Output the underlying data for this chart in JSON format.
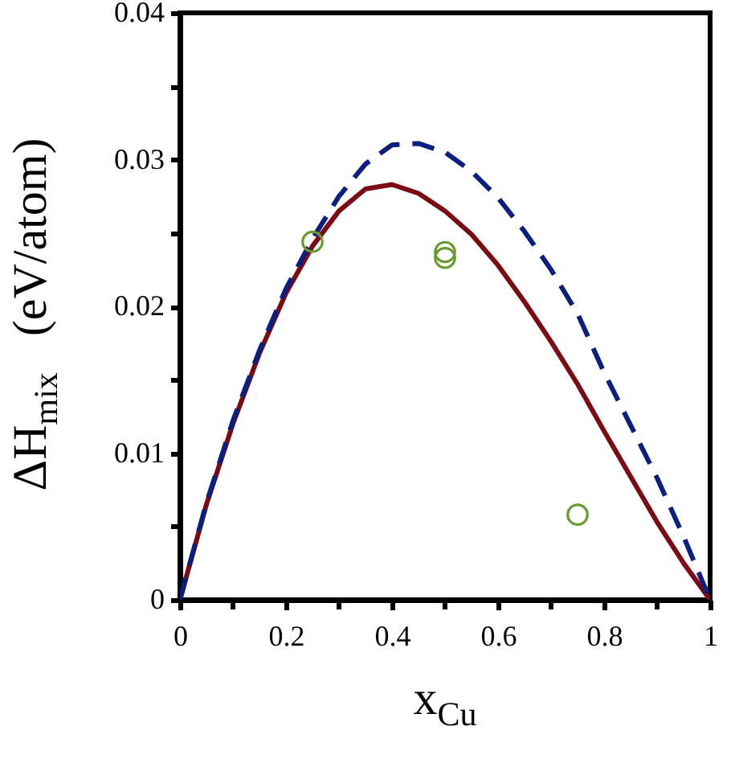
{
  "chart_data": {
    "type": "line",
    "xlabel": "x$_{Cu}$",
    "ylabel": "ΔH$_{mix}$   (eV/atom)",
    "xlim": [
      0,
      1
    ],
    "ylim": [
      0,
      0.04
    ],
    "xticks": [
      0,
      {
        "value": 0.1,
        "label": null
      },
      0.2,
      {
        "value": 0.3,
        "label": null
      },
      0.4,
      {
        "value": 0.5,
        "label": null
      },
      0.6,
      {
        "value": 0.7,
        "label": null
      },
      0.8,
      {
        "value": 0.9,
        "label": null
      },
      1
    ],
    "yticks": [
      0,
      {
        "value": 0.005,
        "label": null
      },
      0.01,
      {
        "value": 0.015,
        "label": null
      },
      0.02,
      {
        "value": 0.025,
        "label": null
      },
      0.03,
      {
        "value": 0.035,
        "label": null
      },
      0.04
    ],
    "x": [
      0,
      0.05,
      0.1,
      0.15,
      0.2,
      0.25,
      0.3,
      0.35,
      0.4,
      0.45,
      0.5,
      0.55,
      0.6,
      0.65,
      0.7,
      0.75,
      0.8,
      0.85,
      0.9,
      0.95,
      1
    ],
    "series": [
      {
        "type": "line",
        "line_style": "solid",
        "color": "#7b0a12",
        "values": [
          0,
          0.0065,
          0.012,
          0.0168,
          0.0209,
          0.0241,
          0.0265,
          0.028,
          0.0283,
          0.0277,
          0.0265,
          0.0249,
          0.0228,
          0.0203,
          0.0176,
          0.0147,
          0.0115,
          0.0084,
          0.0053,
          0.0025,
          0
        ]
      },
      {
        "type": "line",
        "line_style": "dashed",
        "color": "#0a1f7f",
        "values": [
          0,
          0.0066,
          0.0122,
          0.017,
          0.0212,
          0.0246,
          0.0275,
          0.0297,
          0.031,
          0.0311,
          0.0305,
          0.0292,
          0.0274,
          0.0251,
          0.0225,
          0.0195,
          0.0155,
          0.0119,
          0.0083,
          0.0043,
          0
        ]
      },
      {
        "type": "scatter",
        "marker": "circle",
        "color": "#6a9a30",
        "x": [
          0.25,
          0.5,
          0.5,
          0.75
        ],
        "values": [
          0.0244,
          0.0237,
          0.0233,
          0.0058
        ]
      }
    ]
  }
}
